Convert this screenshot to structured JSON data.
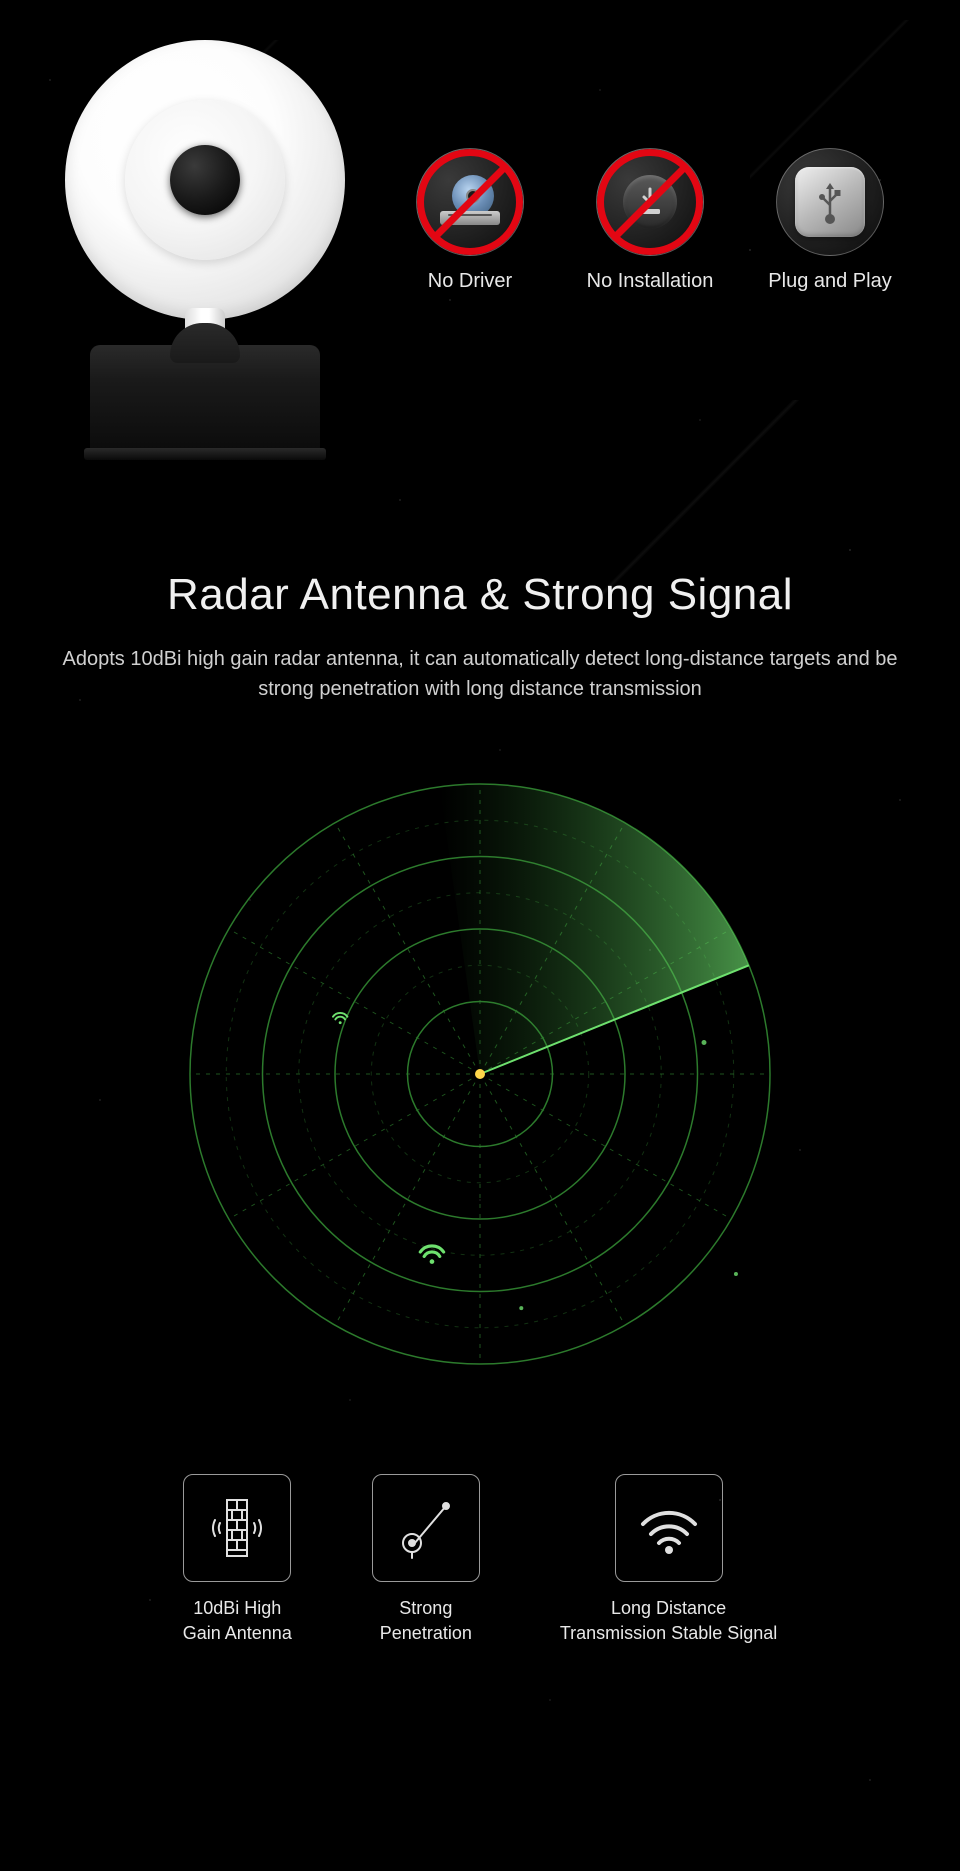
{
  "colors": {
    "background": "#000000",
    "text_primary": "#f0f0f0",
    "text_secondary": "#d0d0d0",
    "accent_red": "#e30613",
    "radar_green": "#3fa83f",
    "radar_green_bright": "#6ee06e",
    "radar_center": "#ffd54a",
    "icon_border": "#9a9a9a"
  },
  "top_badges": [
    {
      "label": "No Driver",
      "icon": "disc-drive",
      "prohibited": true
    },
    {
      "label": "No Installation",
      "icon": "download",
      "prohibited": true
    },
    {
      "label": "Plug and Play",
      "icon": "usb",
      "prohibited": false
    }
  ],
  "section": {
    "title": "Radar Antenna & Strong Signal",
    "subtitle": "Adopts 10dBi high gain radar antenna, it can automatically detect long-distance targets and be strong penetration with long distance transmission"
  },
  "radar": {
    "rings": 4,
    "spokes": 12,
    "sweep_start_deg": -8,
    "sweep_end_deg": 68,
    "ring_stroke": "#2c7a2c",
    "grid_dash": "4 6",
    "sweep_fill_start": "rgba(110,224,110,0.65)",
    "sweep_fill_end": "rgba(40,120,40,0.0)",
    "center_color": "#ffd54a",
    "blips": [
      {
        "r_pct": 0.64,
        "angle_deg": 195,
        "type": "wifi",
        "size": 26
      },
      {
        "r_pct": 0.52,
        "angle_deg": 292,
        "type": "wifi",
        "size": 16
      },
      {
        "r_pct": 0.78,
        "angle_deg": 82,
        "type": "dot",
        "size": 5
      },
      {
        "r_pct": 0.82,
        "angle_deg": 170,
        "type": "dot",
        "size": 4
      },
      {
        "r_pct": 1.12,
        "angle_deg": 128,
        "type": "dot",
        "size": 4
      },
      {
        "r_pct": 1.2,
        "angle_deg": 108,
        "type": "wifi",
        "size": 12
      }
    ]
  },
  "bottom_features": [
    {
      "label": "10dBi High\nGain Antenna",
      "icon": "antenna-wall"
    },
    {
      "label": "Strong\nPenetration",
      "icon": "penetration"
    },
    {
      "label": "Long Distance\nTransmission Stable Signal",
      "icon": "wifi"
    }
  ],
  "typography": {
    "title_fontsize_pt": 33,
    "subtitle_fontsize_pt": 15,
    "badge_label_fontsize_pt": 15,
    "bottom_label_fontsize_pt": 14
  }
}
